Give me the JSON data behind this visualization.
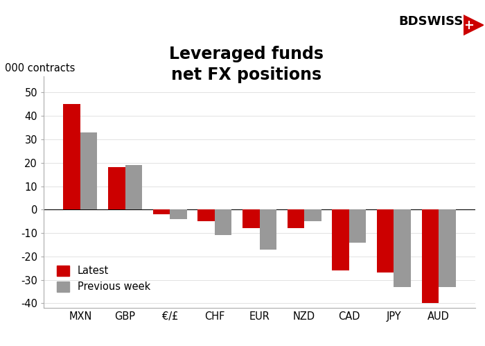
{
  "title_line1": "Leveraged funds",
  "title_line2": "net FX positions",
  "ylabel": "000 contracts",
  "categories": [
    "MXN",
    "GBP",
    "€/£",
    "CHF",
    "EUR",
    "NZD",
    "CAD",
    "JPY",
    "AUD"
  ],
  "latest": [
    45,
    18,
    -2,
    -5,
    -8,
    -8,
    -26,
    -27,
    -40
  ],
  "previous_week": [
    33,
    19,
    -4,
    -11,
    -17,
    -5,
    -14,
    -33,
    -33
  ],
  "color_latest": "#cc0000",
  "color_previous": "#999999",
  "ylim": [
    -42,
    57
  ],
  "yticks": [
    -40,
    -30,
    -20,
    -10,
    0,
    10,
    20,
    30,
    40,
    50
  ],
  "background_color": "#ffffff",
  "bar_width": 0.38,
  "title_fontsize": 17,
  "axis_fontsize": 10.5,
  "legend_fontsize": 10.5
}
